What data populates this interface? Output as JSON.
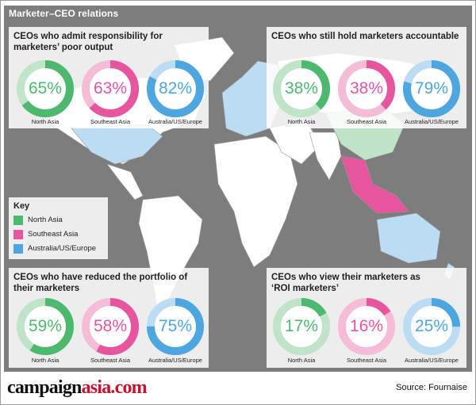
{
  "title": "Marketer–CEO relations",
  "key": {
    "title": "Key",
    "items": [
      {
        "label": "North Asia",
        "color": "#4db96e"
      },
      {
        "label": "Southeast Asia",
        "color": "#e6559e"
      },
      {
        "label": "Australia/US/Europe",
        "color": "#4da6e0"
      }
    ]
  },
  "colors": {
    "north_asia": "#4db96e",
    "north_asia_light": "#bfe4c8",
    "southeast_asia": "#e6559e",
    "southeast_asia_light": "#f5bcd8",
    "aus_us_europe": "#4da6e0",
    "aus_us_europe_light": "#bcdcf3",
    "map_water": "#7d7d7d",
    "map_land": "#ffffff"
  },
  "chart_data": [
    {
      "type": "pie",
      "title": "CEOs who admit responsibility for marketers’ poor output",
      "categories": [
        "North Asia",
        "Southeast Asia",
        "Australia/US/Europe"
      ],
      "values": [
        65,
        63,
        82
      ],
      "labels": [
        "65%",
        "63%",
        "82%"
      ]
    },
    {
      "type": "pie",
      "title": "CEOs who still hold marketers accountable",
      "categories": [
        "North Asia",
        "Southeast Asia",
        "Australia/US/Europe"
      ],
      "values": [
        38,
        38,
        79
      ],
      "labels": [
        "38%",
        "38%",
        "79%"
      ]
    },
    {
      "type": "pie",
      "title": "CEOs who have reduced the portfolio of their marketers",
      "categories": [
        "North Asia",
        "Southeast Asia",
        "Australia/US/Europe"
      ],
      "values": [
        59,
        58,
        75
      ],
      "labels": [
        "59%",
        "58%",
        "75%"
      ]
    },
    {
      "type": "pie",
      "title": "CEOs who view their marketers as ‘ROI marketers’",
      "categories": [
        "North Asia",
        "Southeast Asia",
        "Australia/US/Europe"
      ],
      "values": [
        17,
        16,
        25
      ],
      "labels": [
        "17%",
        "16%",
        "25%"
      ]
    }
  ],
  "logo": {
    "part1": "campaign",
    "part2": "asia.com"
  },
  "source": "Source: Fournaise"
}
